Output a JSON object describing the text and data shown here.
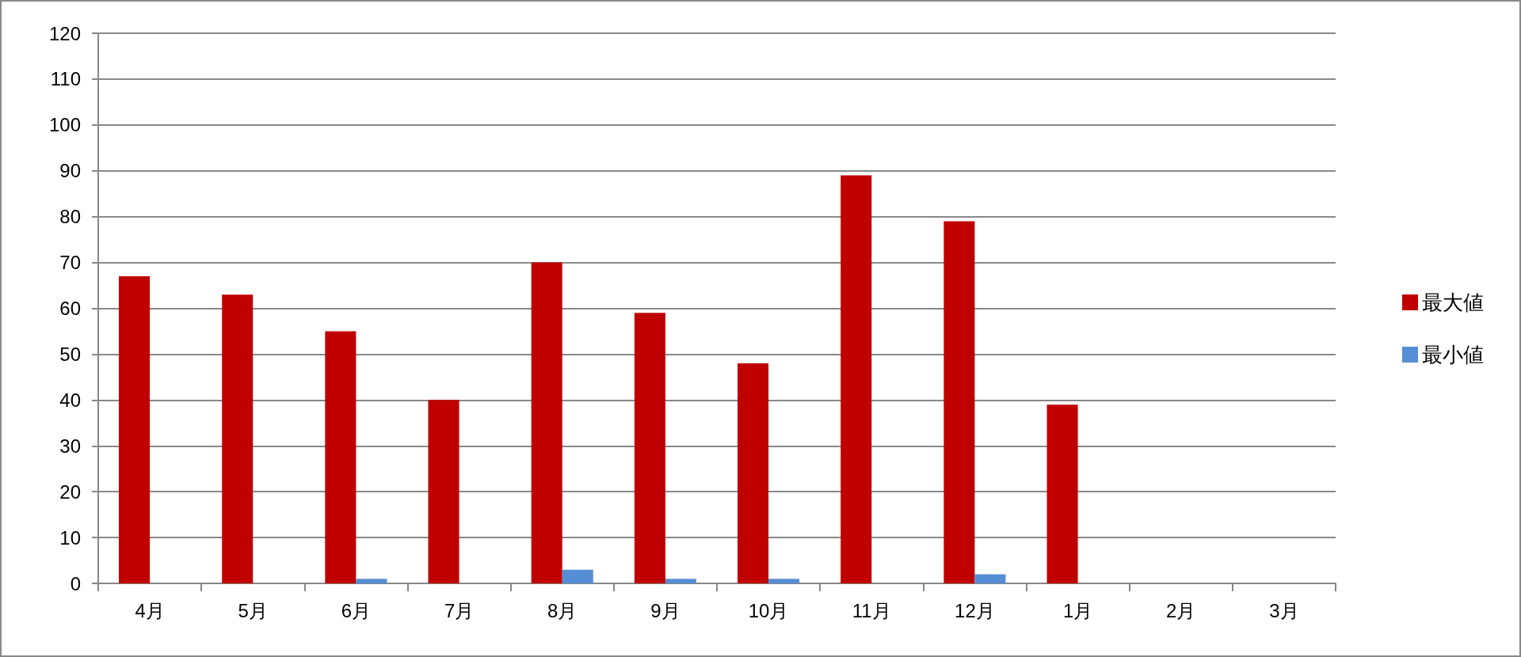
{
  "chart_data": {
    "type": "bar",
    "categories": [
      "4月",
      "5月",
      "6月",
      "7月",
      "8月",
      "9月",
      "10月",
      "11月",
      "12月",
      "1月",
      "2月",
      "3月"
    ],
    "series": [
      {
        "name": "最大値",
        "color": "#c00000",
        "values": [
          67,
          63,
          55,
          40,
          70,
          59,
          48,
          89,
          79,
          39,
          null,
          null
        ]
      },
      {
        "name": "最小値",
        "color": "#558ed5",
        "values": [
          0,
          0,
          1,
          0,
          3,
          1,
          1,
          0,
          2,
          0,
          null,
          null
        ]
      }
    ],
    "ylim": [
      0,
      120
    ],
    "yticks": [
      0,
      10,
      20,
      30,
      40,
      50,
      60,
      70,
      80,
      90,
      100,
      110,
      120
    ],
    "grid": "y",
    "legend": "right"
  }
}
